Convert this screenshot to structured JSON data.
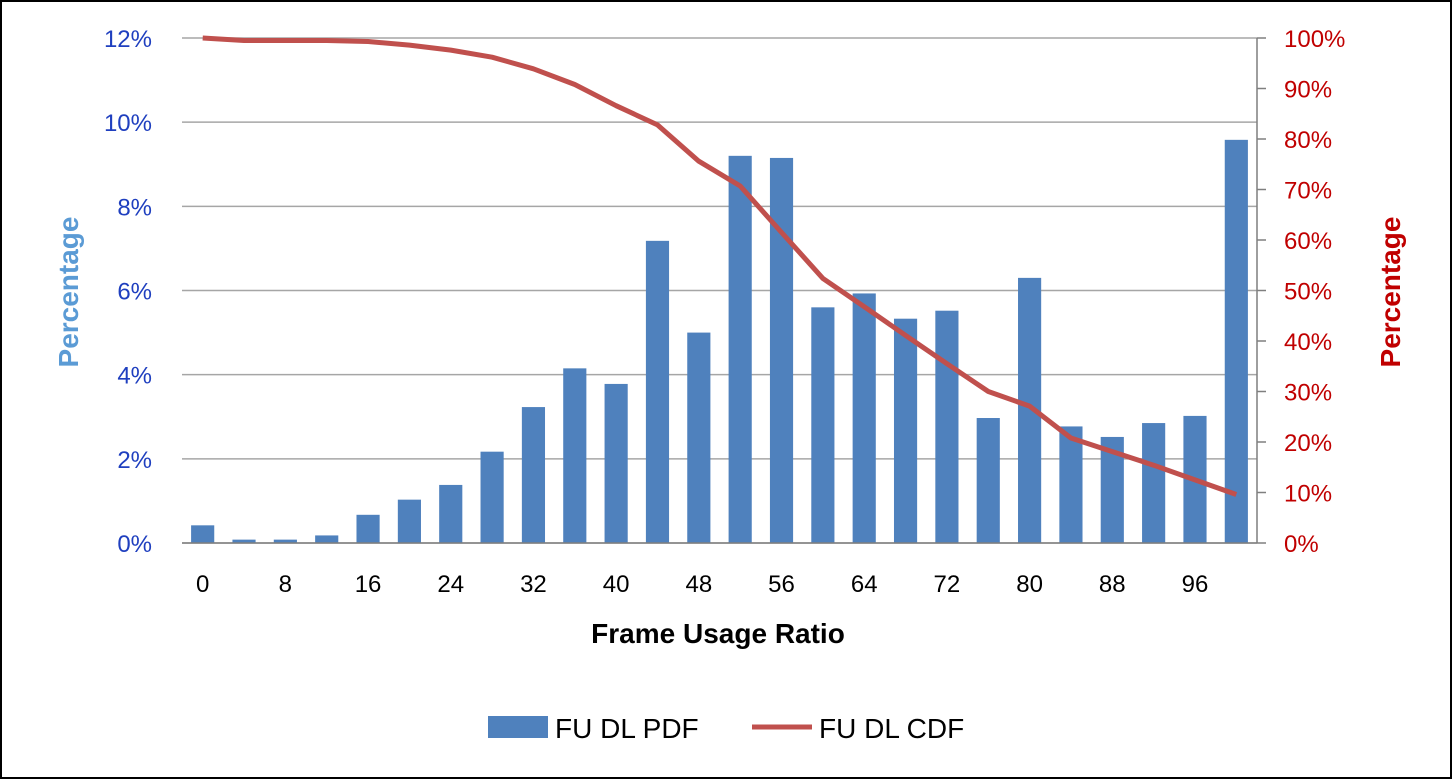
{
  "chart_data": {
    "type": "bar+line",
    "x_labels": [
      "0",
      "8",
      "16",
      "24",
      "32",
      "40",
      "48",
      "56",
      "64",
      "72",
      "80",
      "88",
      "96"
    ],
    "x": [
      0,
      4,
      8,
      12,
      16,
      20,
      24,
      28,
      32,
      36,
      40,
      44,
      48,
      52,
      56,
      60,
      64,
      68,
      72,
      76,
      80,
      84,
      88,
      92,
      96,
      100
    ],
    "xlabel": "Frame Usage Ratio",
    "ylabel_left": "Percentage",
    "ylabel_right": "Percentage",
    "ylim_left": [
      0,
      12
    ],
    "ylim_right": [
      0,
      100
    ],
    "yticks_left": [
      "0%",
      "2%",
      "4%",
      "6%",
      "8%",
      "10%",
      "12%"
    ],
    "yticks_right": [
      "0%",
      "10%",
      "20%",
      "30%",
      "40%",
      "50%",
      "60%",
      "70%",
      "80%",
      "90%",
      "100%"
    ],
    "grid": true,
    "legend_position": "bottom",
    "series": [
      {
        "name": "FU DL PDF",
        "type": "bar",
        "axis": "left",
        "color": "#4f81bd",
        "values": [
          0.42,
          0.08,
          0.08,
          0.18,
          0.67,
          1.03,
          1.38,
          2.17,
          3.23,
          4.15,
          3.78,
          7.18,
          5.0,
          9.2,
          9.15,
          5.6,
          5.93,
          5.33,
          5.52,
          2.97,
          6.3,
          2.77,
          2.52,
          2.85,
          3.02,
          9.58
        ]
      },
      {
        "name": "FU DL CDF",
        "type": "line",
        "axis": "right",
        "color": "#c0504d",
        "values": [
          100,
          99.5,
          99.5,
          99.5,
          99.3,
          98.6,
          97.6,
          96.2,
          93.9,
          90.8,
          86.6,
          82.8,
          75.6,
          70.7,
          61.5,
          52.4,
          46.8,
          41.1,
          35.5,
          30.0,
          27.1,
          20.8,
          18.1,
          15.4,
          12.5,
          9.6
        ]
      }
    ]
  }
}
